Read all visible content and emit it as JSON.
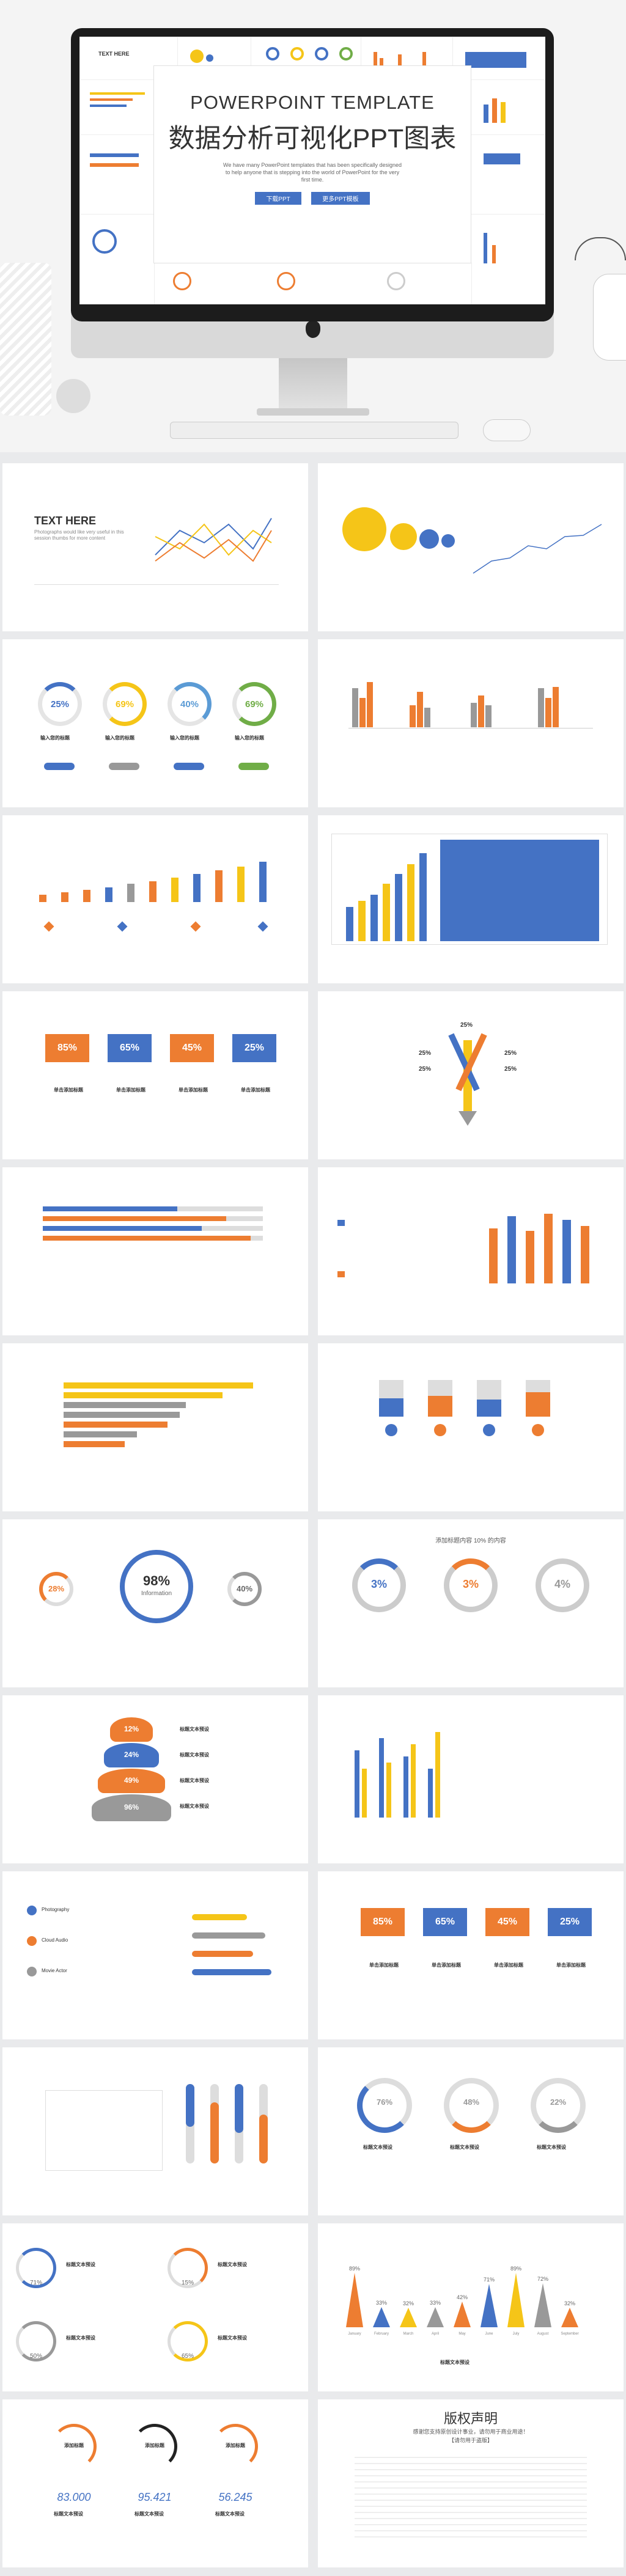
{
  "hero": {
    "title_en": "POWERPOINT TEMPLATE",
    "title_cn": "数据分析可视化PPT图表",
    "description": "We have many PowerPoint templates that has been specifically designed to help anyone that is stepping into the world of PowerPoint for the very first time.",
    "button_left": "下载PPT",
    "button_right": "更多PPT模板",
    "thumb_title": "TEXT HERE"
  },
  "slide1": {
    "title": "TEXT HERE",
    "desc": "Photographs would like very useful in this session thumbs for more content"
  },
  "slide3": {
    "percents": [
      "25%",
      "69%",
      "40%",
      "69%"
    ],
    "label": "输入您的标题",
    "btn_colors": [
      "#4472c4",
      "#999999",
      "#4472c4",
      "#70ad47"
    ]
  },
  "slide7": {
    "percents": [
      "85%",
      "65%",
      "45%",
      "25%"
    ],
    "label": "单击添加标题"
  },
  "slide8": {
    "percents": [
      "25%",
      "25%",
      "25%",
      "25%",
      "25%"
    ]
  },
  "slide13": {
    "big": "98%",
    "big_label": "Information",
    "left": "28%",
    "right": "40%"
  },
  "slide14": {
    "title": "添加标题内容 10% 的内容",
    "percents": [
      "3%",
      "3%",
      "4%"
    ]
  },
  "slide15": {
    "percents": [
      "12%",
      "24%",
      "49%",
      "96%"
    ],
    "label": "标题文本预设"
  },
  "slide17": {
    "items": [
      "Photography",
      "Cloud Audio",
      "Movie Actor"
    ]
  },
  "slide18": {
    "percents": [
      "85%",
      "65%",
      "45%",
      "25%"
    ],
    "label": "单击添加标题"
  },
  "slide20": {
    "percents": [
      "76%",
      "48%",
      "22%"
    ],
    "label": "标题文本预设"
  },
  "slide21": {
    "percents": [
      "71%",
      "15%",
      "50%",
      "65%"
    ],
    "label": "标题文本预设"
  },
  "slide22": {
    "values": [
      "89%",
      "33%",
      "32%",
      "33%",
      "42%",
      "71%",
      "89%",
      "72%",
      "32%"
    ],
    "months": [
      "January",
      "February",
      "March",
      "April",
      "May",
      "June",
      "July",
      "August",
      "September"
    ],
    "label": "标题文本预设"
  },
  "slide23": {
    "values": [
      "83.000",
      "95.421",
      "56.245"
    ],
    "label": "添加标题",
    "sub": "标题文本预设"
  },
  "slide24": {
    "title": "版权声明",
    "subtitle": "感谢您支持原创设计事业，请勿用于商业用途！",
    "sub2": "【请勿用于盗版】"
  }
}
